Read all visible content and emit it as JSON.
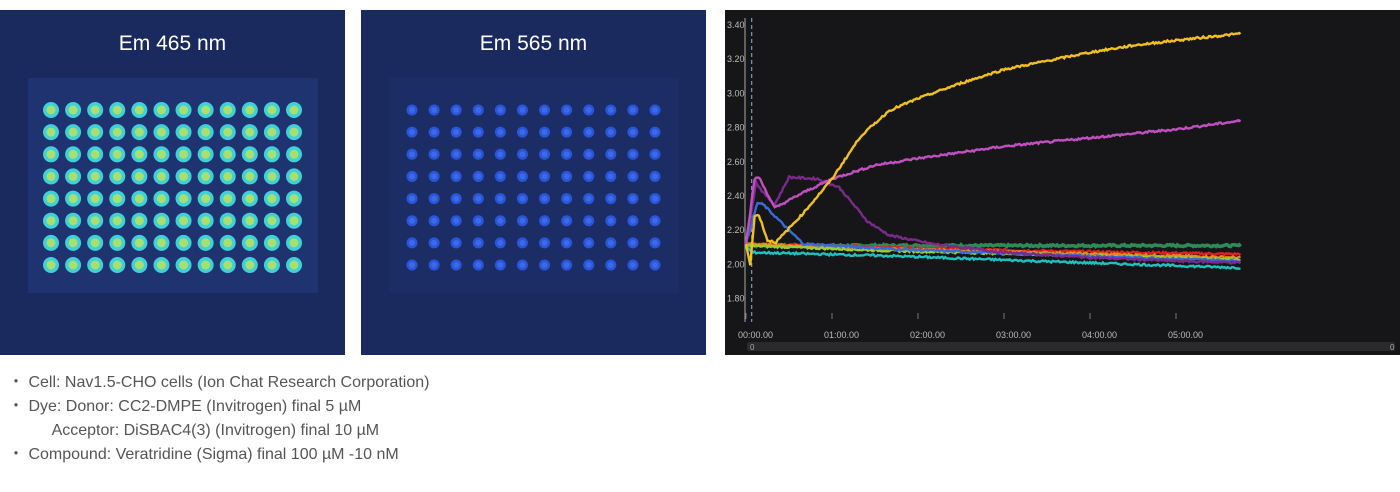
{
  "plates": [
    {
      "title": "Em 465 nm",
      "rows": 8,
      "cols": 12,
      "well_color": "#3fd0d8",
      "well_core": "#a8e070",
      "plate_bg": "#1a2a5e"
    },
    {
      "title": "Em 565 nm",
      "rows": 8,
      "cols": 12,
      "well_color": "#2a55d8",
      "well_core": "#3a6ae8",
      "plate_bg": "#1a2a5e"
    }
  ],
  "chart_data": {
    "type": "line",
    "title": "",
    "xlabel": "",
    "ylabel": "",
    "xlim_seconds": [
      0,
      345
    ],
    "ylim": [
      1.65,
      3.43
    ],
    "yticks": [
      "1.80",
      "2.00",
      "2.20",
      "2.40",
      "2.60",
      "2.80",
      "3.00",
      "3.20",
      "3.40"
    ],
    "xticks": [
      "00:00.00",
      "01:00.00",
      "02:00.00",
      "03:00.00",
      "04:00.00",
      "05:00.00"
    ],
    "addition_marker_seconds": 4,
    "grid": false,
    "scrollbar": {
      "start_label": "0",
      "end_label": "0"
    },
    "series": [
      {
        "color": "#2e8b57",
        "points": [
          [
            0,
            2.11
          ],
          [
            345,
            2.11
          ]
        ]
      },
      {
        "color": "#e02020",
        "points": [
          [
            0,
            2.12
          ],
          [
            100,
            2.1
          ],
          [
            200,
            2.08
          ],
          [
            345,
            2.06
          ]
        ]
      },
      {
        "color": "#e08a20",
        "points": [
          [
            0,
            2.12
          ],
          [
            100,
            2.09
          ],
          [
            200,
            2.07
          ],
          [
            345,
            2.04
          ]
        ]
      },
      {
        "color": "#9acd32",
        "points": [
          [
            0,
            2.11
          ],
          [
            100,
            2.08
          ],
          [
            200,
            2.06
          ],
          [
            345,
            2.03
          ]
        ]
      },
      {
        "color": "#3a6ad8",
        "points": [
          [
            0,
            2.12
          ],
          [
            8,
            2.36
          ],
          [
            12,
            2.35
          ],
          [
            30,
            2.2
          ],
          [
            40,
            2.12
          ],
          [
            100,
            2.09
          ],
          [
            200,
            2.06
          ],
          [
            345,
            2.02
          ]
        ]
      },
      {
        "color": "#7a2a8a",
        "points": [
          [
            0,
            2.12
          ],
          [
            7,
            2.48
          ],
          [
            12,
            2.42
          ],
          [
            20,
            2.35
          ],
          [
            30,
            2.51
          ],
          [
            50,
            2.5
          ],
          [
            65,
            2.45
          ],
          [
            85,
            2.25
          ],
          [
            100,
            2.17
          ],
          [
            130,
            2.12
          ],
          [
            180,
            2.07
          ],
          [
            240,
            2.04
          ],
          [
            300,
            2.02
          ],
          [
            345,
            2.01
          ]
        ]
      },
      {
        "color": "#20c0c0",
        "points": [
          [
            0,
            2.1
          ],
          [
            5,
            2.07
          ],
          [
            100,
            2.05
          ],
          [
            200,
            2.02
          ],
          [
            345,
            1.98
          ]
        ]
      },
      {
        "color": "#c050c0",
        "points": [
          [
            0,
            2.12
          ],
          [
            6,
            2.5
          ],
          [
            9,
            2.51
          ],
          [
            20,
            2.33
          ],
          [
            40,
            2.42
          ],
          [
            60,
            2.5
          ],
          [
            90,
            2.58
          ],
          [
            120,
            2.62
          ],
          [
            180,
            2.69
          ],
          [
            240,
            2.74
          ],
          [
            300,
            2.79
          ],
          [
            345,
            2.84
          ]
        ]
      },
      {
        "color": "#f0c020",
        "points": [
          [
            0,
            2.12
          ],
          [
            3,
            2.0
          ],
          [
            6,
            2.28
          ],
          [
            9,
            2.29
          ],
          [
            15,
            2.14
          ],
          [
            21,
            2.13
          ],
          [
            40,
            2.3
          ],
          [
            60,
            2.5
          ],
          [
            80,
            2.75
          ],
          [
            100,
            2.9
          ],
          [
            120,
            2.97
          ],
          [
            150,
            3.06
          ],
          [
            180,
            3.14
          ],
          [
            210,
            3.19
          ],
          [
            240,
            3.24
          ],
          [
            270,
            3.28
          ],
          [
            300,
            3.31
          ],
          [
            345,
            3.35
          ]
        ]
      }
    ]
  },
  "notes": [
    "・ Cell: Nav1.5-CHO cells (Ion Chat Research Corporation)",
    "・ Dye: Donor: CC2-DMPE (Invitrogen) final 5 µM",
    "          Acceptor: DiSBAC4(3) (Invitrogen) final 10 µM",
    "・ Compound: Veratridine (Sigma) final 100 µM -10 nM"
  ]
}
